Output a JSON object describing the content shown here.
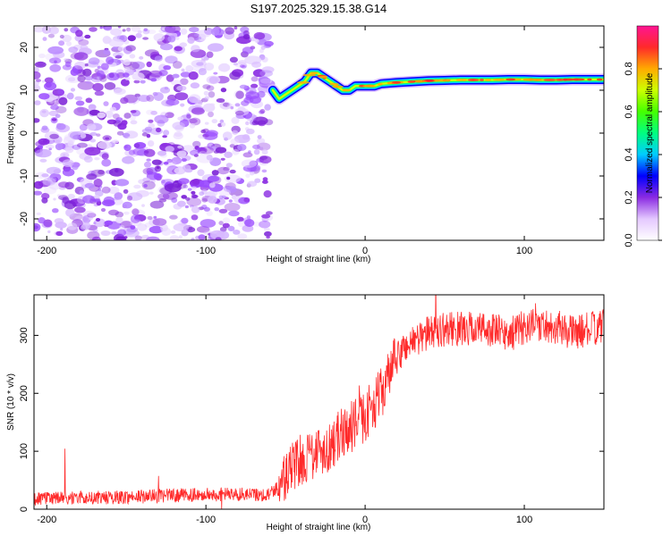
{
  "title": "S197.2025.329.15.38.G14",
  "chart_data": [
    {
      "type": "heatmap",
      "name": "spectrogram",
      "xlabel": "Height of straight line (km)",
      "ylabel": "Frequency (Hz)",
      "xlim": [
        -208,
        150
      ],
      "ylim": [
        -25,
        25
      ],
      "xticks": [
        -200,
        -100,
        0,
        100
      ],
      "yticks": [
        -20,
        -10,
        0,
        10,
        20
      ],
      "noise_region_x": [
        -208,
        -60
      ],
      "signal_track": {
        "x": [
          -58,
          -54,
          -50,
          -46,
          -42,
          -38,
          -34,
          -30,
          -26,
          -22,
          -18,
          -14,
          -10,
          -6,
          -2,
          2,
          6,
          10,
          20,
          30,
          40,
          50,
          60,
          70,
          80,
          90,
          100,
          110,
          120,
          130,
          140,
          150
        ],
        "freq": [
          10,
          8,
          9,
          10,
          11,
          12,
          14,
          14,
          13,
          12,
          11,
          10,
          10,
          11,
          11,
          11,
          11,
          11.5,
          11.8,
          12,
          12.2,
          12.3,
          12.4,
          12.4,
          12.4,
          12.5,
          12.5,
          12.4,
          12.4,
          12.5,
          12.5,
          12.5
        ]
      },
      "colorbar": {
        "label": "Normalized spectral amplitude",
        "range": [
          0,
          1
        ],
        "ticks": [
          "0.0",
          "0.2",
          "0.4",
          "0.6",
          "0.8"
        ]
      }
    },
    {
      "type": "line",
      "name": "snr",
      "xlabel": "Height of straight line (km)",
      "ylabel": "SNR (10 * v/v)",
      "xlim": [
        -208,
        150
      ],
      "ylim": [
        0,
        370
      ],
      "xticks": [
        -200,
        -100,
        0,
        100
      ],
      "yticks": [
        0,
        100,
        200,
        300
      ],
      "series": [
        {
          "name": "SNR",
          "color": "#ff2a2a",
          "x": [
            -208,
            -180,
            -160,
            -140,
            -120,
            -100,
            -80,
            -60,
            -50,
            -45,
            -40,
            -35,
            -30,
            -25,
            -20,
            -15,
            -10,
            -5,
            0,
            5,
            10,
            15,
            20,
            25,
            30,
            40,
            50,
            60,
            70,
            80,
            90,
            100,
            110,
            120,
            130,
            140,
            150
          ],
          "y": [
            18,
            20,
            20,
            22,
            24,
            25,
            26,
            25,
            55,
            75,
            85,
            95,
            100,
            105,
            115,
            130,
            140,
            150,
            160,
            180,
            200,
            230,
            260,
            280,
            290,
            305,
            310,
            312,
            312,
            310,
            300,
            315,
            318,
            315,
            305,
            310,
            315
          ]
        }
      ]
    }
  ],
  "colors": {
    "noise": "#8a2be2",
    "snr_line": "#ff2a2a"
  }
}
